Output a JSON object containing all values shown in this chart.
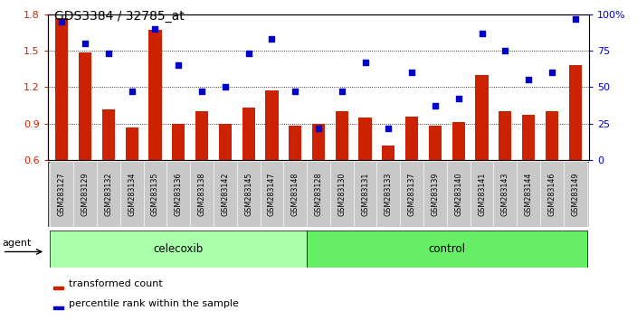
{
  "title": "GDS3384 / 32785_at",
  "samples": [
    "GSM283127",
    "GSM283129",
    "GSM283132",
    "GSM283134",
    "GSM283135",
    "GSM283136",
    "GSM283138",
    "GSM283142",
    "GSM283145",
    "GSM283147",
    "GSM283148",
    "GSM283128",
    "GSM283130",
    "GSM283131",
    "GSM283133",
    "GSM283137",
    "GSM283139",
    "GSM283140",
    "GSM283141",
    "GSM283143",
    "GSM283144",
    "GSM283146",
    "GSM283149"
  ],
  "bar_values": [
    1.77,
    1.49,
    1.02,
    0.87,
    1.67,
    0.9,
    1.0,
    0.9,
    1.03,
    1.17,
    0.88,
    0.9,
    1.0,
    0.95,
    0.72,
    0.96,
    0.88,
    0.91,
    1.3,
    1.0,
    0.97,
    1.0,
    1.38
  ],
  "dot_values_pct": [
    95,
    80,
    73,
    47,
    90,
    65,
    47,
    50,
    73,
    83,
    47,
    22,
    47,
    67,
    22,
    60,
    37,
    42,
    87,
    75,
    55,
    60,
    97
  ],
  "celecoxib_count": 11,
  "control_count": 12,
  "ylim_left": [
    0.6,
    1.8
  ],
  "ylim_right": [
    0,
    100
  ],
  "yticks_left": [
    0.6,
    0.9,
    1.2,
    1.5,
    1.8
  ],
  "yticks_right": [
    0,
    25,
    50,
    75,
    100
  ],
  "bar_color": "#cc2200",
  "dot_color": "#0000cc",
  "celecoxib_color": "#aaffaa",
  "control_color": "#66ee66",
  "xtick_bg_color": "#c8c8c8",
  "background_color": "#ffffff",
  "legend_bar_label": "transformed count",
  "legend_dot_label": "percentile rank within the sample",
  "agent_label": "agent",
  "celecoxib_label": "celecoxib",
  "control_label": "control"
}
